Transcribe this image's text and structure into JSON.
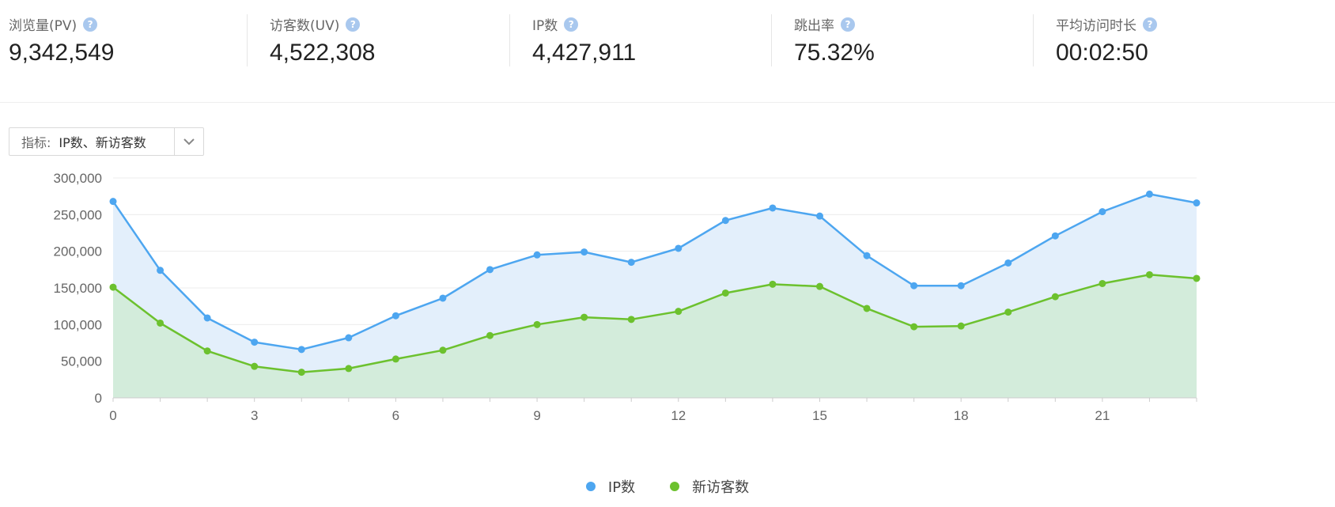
{
  "stats": [
    {
      "label": "浏览量(PV)",
      "value": "9,342,549"
    },
    {
      "label": "访客数(UV)",
      "value": "4,522,308"
    },
    {
      "label": "IP数",
      "value": "4,427,911"
    },
    {
      "label": "跳出率",
      "value": "75.32%"
    },
    {
      "label": "平均访问时长",
      "value": "00:02:50"
    }
  ],
  "help_icon": "?",
  "selector": {
    "label": "指标:",
    "value": "IP数、新访客数",
    "icon": "chevron-down-icon"
  },
  "chart_data": {
    "type": "area",
    "x": [
      0,
      1,
      2,
      3,
      4,
      5,
      6,
      7,
      8,
      9,
      10,
      11,
      12,
      13,
      14,
      15,
      16,
      17,
      18,
      19,
      20,
      21,
      22,
      23
    ],
    "xticks": [
      0,
      3,
      6,
      9,
      12,
      15,
      18,
      21
    ],
    "yticks": [
      0,
      50000,
      100000,
      150000,
      200000,
      250000,
      300000
    ],
    "ytick_labels": [
      "0",
      "50,000",
      "100,000",
      "150,000",
      "200,000",
      "250,000",
      "300,000"
    ],
    "ylim": [
      0,
      300000
    ],
    "series": [
      {
        "name": "IP数",
        "color": "#4da6f0",
        "fill": "#e3effb",
        "values": [
          268000,
          174000,
          109000,
          76000,
          66000,
          82000,
          112000,
          136000,
          175000,
          195000,
          199000,
          185000,
          204000,
          242000,
          259000,
          248000,
          194000,
          153000,
          153000,
          184000,
          221000,
          254000,
          278000,
          266000
        ]
      },
      {
        "name": "新访客数",
        "color": "#6cc12e",
        "fill": "#d3ecdb",
        "values": [
          151000,
          102000,
          64000,
          43000,
          35000,
          40000,
          53000,
          65000,
          85000,
          100000,
          110000,
          107000,
          118000,
          143000,
          155000,
          152000,
          122000,
          97000,
          98000,
          117000,
          138000,
          156000,
          168000,
          163000
        ]
      }
    ],
    "grid": true,
    "legend": "bottom-center"
  }
}
